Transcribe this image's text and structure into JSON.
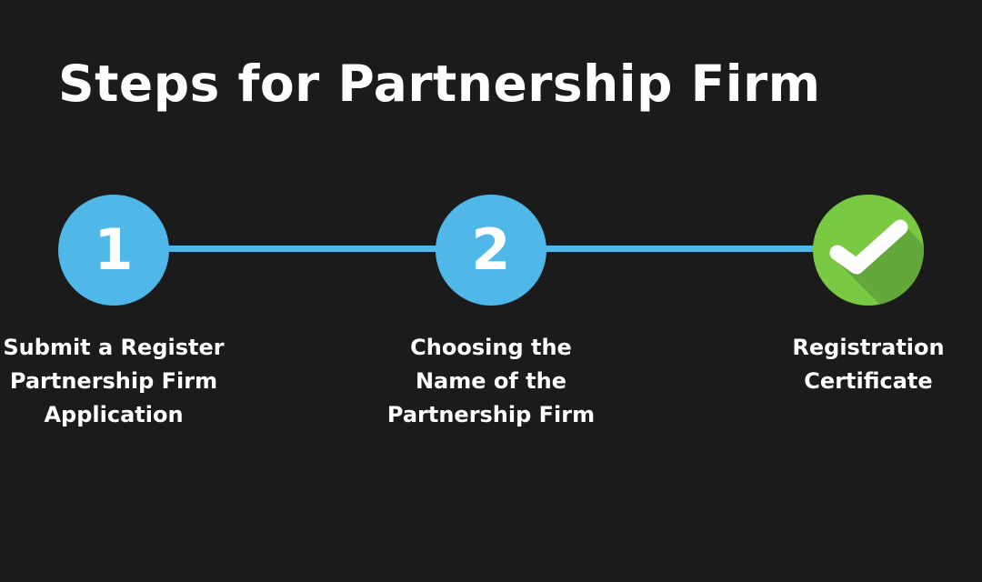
{
  "title": "Steps for Partnership Firm",
  "colors": {
    "background": "#1b1b1b",
    "step_blue": "#50b8e8",
    "complete_green": "#7ac943",
    "text": "#ffffff"
  },
  "steps": [
    {
      "marker": "1",
      "label": "Submit a Register\nPartnership Firm\nApplication"
    },
    {
      "marker": "2",
      "label": "Choosing the\nName of the\nPartnership Firm"
    },
    {
      "marker_icon": "checkmark-icon",
      "label": "Registration\nCertificate"
    }
  ]
}
